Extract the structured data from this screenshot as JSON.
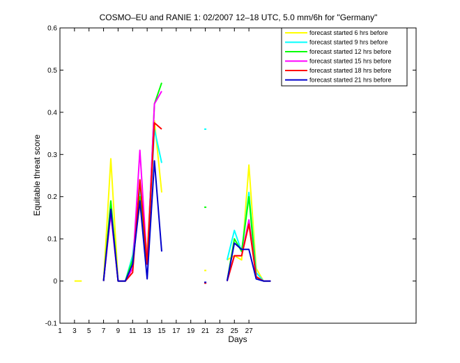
{
  "chart_data": {
    "type": "line",
    "title": "COSMO–EU and RANIE 1: 02/2007 12–18 UTC, 5.0 mm/6h for \"Germany\"",
    "xlabel": "Days",
    "ylabel": "Equitable threat score",
    "xlim": [
      1,
      50
    ],
    "ylim": [
      -0.1,
      0.6
    ],
    "x_ticks": [
      1,
      3,
      5,
      7,
      9,
      11,
      13,
      15,
      17,
      19,
      21,
      23,
      25,
      27
    ],
    "y_ticks": [
      -0.1,
      0,
      0.1,
      0.2,
      0.3,
      0.4,
      0.5,
      0.6
    ],
    "y_tick_labels": [
      "-0.1",
      "0",
      "0.1",
      "0.2",
      "0.3",
      "0.4",
      "0.5",
      "0.6"
    ],
    "grid": false,
    "legend": "top-right",
    "series": [
      {
        "name": "forecast started 6 hrs before",
        "color": "#ffff00",
        "values": [
          null,
          null,
          0,
          0,
          null,
          null,
          0,
          0.29,
          0,
          0,
          0.06,
          0.18,
          0.07,
          0.38,
          0.21,
          null,
          null,
          null,
          null,
          null,
          0.025,
          null,
          null,
          0.05,
          0.06,
          0.05,
          0.275,
          0.03,
          0,
          0
        ]
      },
      {
        "name": "forecast started 9 hrs before",
        "color": "#00ffff",
        "values": [
          null,
          null,
          null,
          null,
          null,
          null,
          0,
          0.18,
          0,
          0,
          0.06,
          0.22,
          0.04,
          0.36,
          0.28,
          null,
          null,
          null,
          null,
          null,
          0.36,
          null,
          null,
          0.05,
          0.12,
          0.07,
          0.21,
          0.02,
          0,
          0
        ]
      },
      {
        "name": "forecast started 12 hrs before",
        "color": "#00ff00",
        "values": [
          null,
          null,
          null,
          null,
          null,
          null,
          0,
          0.19,
          0,
          0,
          0.05,
          0.2,
          0.04,
          0.42,
          0.47,
          null,
          null,
          null,
          null,
          null,
          0.175,
          null,
          null,
          0,
          0.1,
          0.07,
          0.2,
          0.01,
          0,
          0
        ]
      },
      {
        "name": "forecast started 15 hrs before",
        "color": "#ff00ff",
        "values": [
          null,
          null,
          null,
          null,
          null,
          null,
          0,
          0.16,
          0,
          0,
          0.03,
          0.31,
          0.04,
          0.42,
          0.45,
          null,
          null,
          null,
          null,
          null,
          null,
          null,
          null,
          0,
          0.06,
          0.06,
          0.145,
          0.01,
          0,
          0
        ]
      },
      {
        "name": "forecast started 18 hrs before",
        "color": "#ff0000",
        "values": [
          null,
          null,
          null,
          null,
          null,
          null,
          0,
          0.17,
          0,
          0,
          0.02,
          0.24,
          0.04,
          0.375,
          0.36,
          null,
          null,
          null,
          null,
          null,
          -0.005,
          null,
          null,
          0,
          0.06,
          0.06,
          0.135,
          0.01,
          0,
          0
        ]
      },
      {
        "name": "forecast started 21 hrs before",
        "color": "#0000cc",
        "values": [
          null,
          null,
          null,
          null,
          null,
          null,
          0,
          0.17,
          0,
          0,
          0.04,
          0.19,
          0.005,
          0.285,
          0.07,
          null,
          null,
          null,
          null,
          null,
          -0.003,
          null,
          null,
          0,
          0.09,
          0.075,
          0.075,
          0.005,
          0,
          0
        ]
      }
    ]
  }
}
